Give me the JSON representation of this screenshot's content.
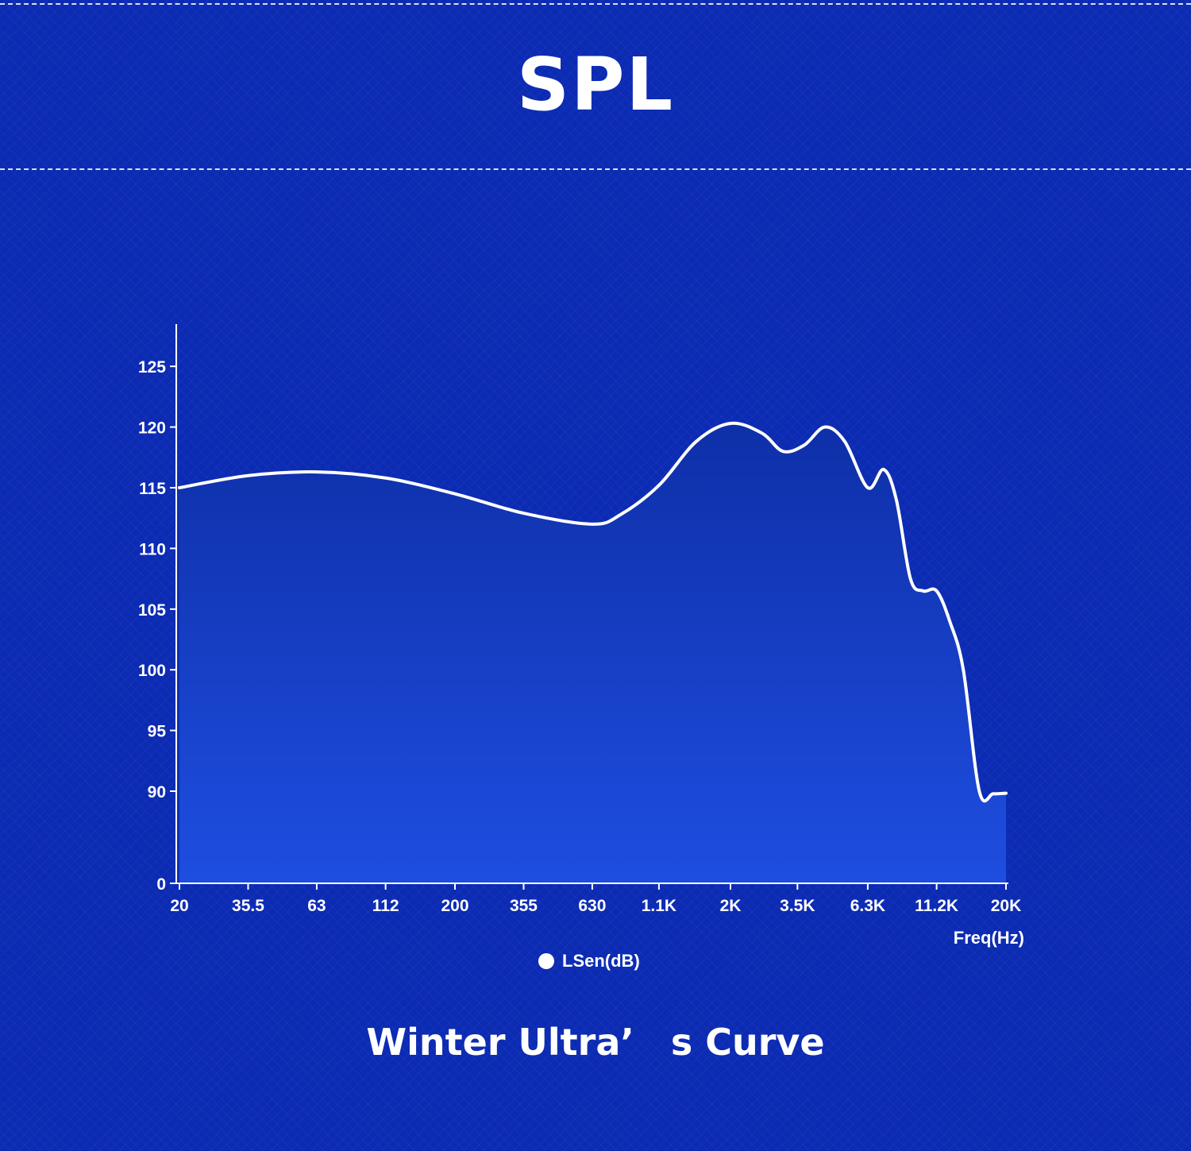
{
  "page": {
    "title": "SPL",
    "caption": "Winter Ultra’　s Curve"
  },
  "colors": {
    "background": "#0c2bb3",
    "line": "#ffffff",
    "fill_top": "#0e2fa8",
    "fill_bottom": "#1e4ee0"
  },
  "chart_data": {
    "type": "area",
    "title": "",
    "xlabel": "Freq(Hz)",
    "ylabel": "",
    "x_scale": "log",
    "x_ticks": [
      "20",
      "35.5",
      "63",
      "112",
      "200",
      "355",
      "630",
      "1.1K",
      "2K",
      "3.5K",
      "6.3K",
      "11.2K",
      "20K"
    ],
    "y_ticks": [
      "0",
      "90",
      "95",
      "100",
      "105",
      "110",
      "115",
      "120",
      "125"
    ],
    "ylim": [
      0,
      127
    ],
    "y_axis_break": "0 to 90 compressed",
    "grid": false,
    "legend_position": "bottom-center",
    "series": [
      {
        "name": "LSen(dB)",
        "x": [
          20,
          35.5,
          63,
          112,
          200,
          355,
          630,
          800,
          1100,
          1500,
          2000,
          2600,
          3100,
          3700,
          4400,
          5200,
          6300,
          7200,
          8000,
          9000,
          10000,
          11200,
          12500,
          14000,
          16000,
          18000,
          20000
        ],
        "y": [
          115,
          116,
          116.3,
          115.8,
          114.5,
          112.9,
          112,
          112.8,
          115.2,
          118.8,
          120.3,
          119.5,
          118,
          118.5,
          120,
          118.8,
          115,
          116.5,
          114,
          107.5,
          106.5,
          106.5,
          104,
          100,
          90,
          87.5,
          88
        ]
      }
    ]
  }
}
